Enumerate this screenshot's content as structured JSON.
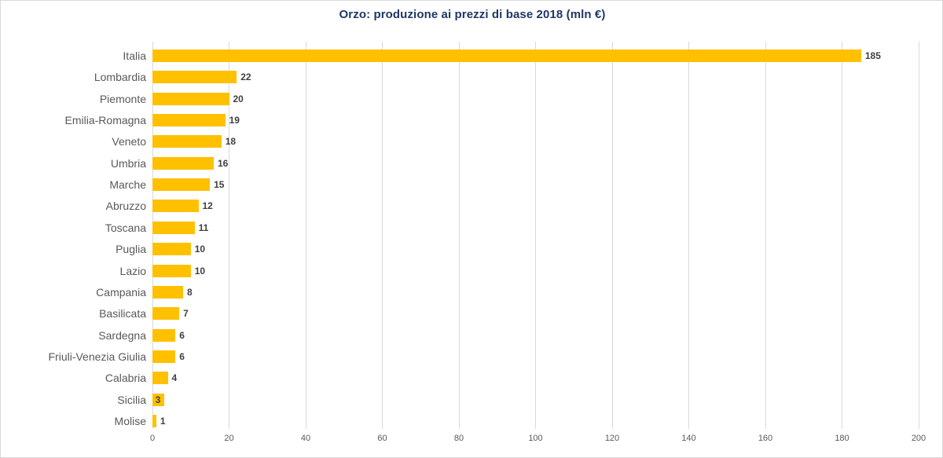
{
  "chart_data": {
    "type": "bar",
    "orientation": "horizontal",
    "title": "Orzo: produzione ai prezzi di base 2018 (mln €)",
    "categories": [
      "Italia",
      "Lombardia",
      "Piemonte",
      "Emilia-Romagna",
      "Veneto",
      "Umbria",
      "Marche",
      "Abruzzo",
      "Toscana",
      "Puglia",
      "Lazio",
      "Campania",
      "Basilicata",
      "Sardegna",
      "Friuli-Venezia Giulia",
      "Calabria",
      "Sicilia",
      "Molise"
    ],
    "values": [
      185,
      22,
      20,
      19,
      18,
      16,
      15,
      12,
      11,
      10,
      10,
      8,
      7,
      6,
      6,
      4,
      3,
      1
    ],
    "xlim": [
      0,
      200
    ],
    "x_ticks": [
      0,
      20,
      40,
      60,
      80,
      100,
      120,
      140,
      160,
      180,
      200
    ],
    "xlabel": "",
    "ylabel": "",
    "grid": "vertical",
    "legend": "none",
    "value_labels_shown": true,
    "value_label_dx_overrides": {
      "Sicilia": -16
    },
    "colors": {
      "bar": "#FFC000",
      "title": "#1F3864",
      "axis_labels": "#595959",
      "value_labels": "#404040",
      "gridlines": "#D9D9D9",
      "border": "#D9D9D9",
      "background": "#FFFFFF"
    }
  }
}
